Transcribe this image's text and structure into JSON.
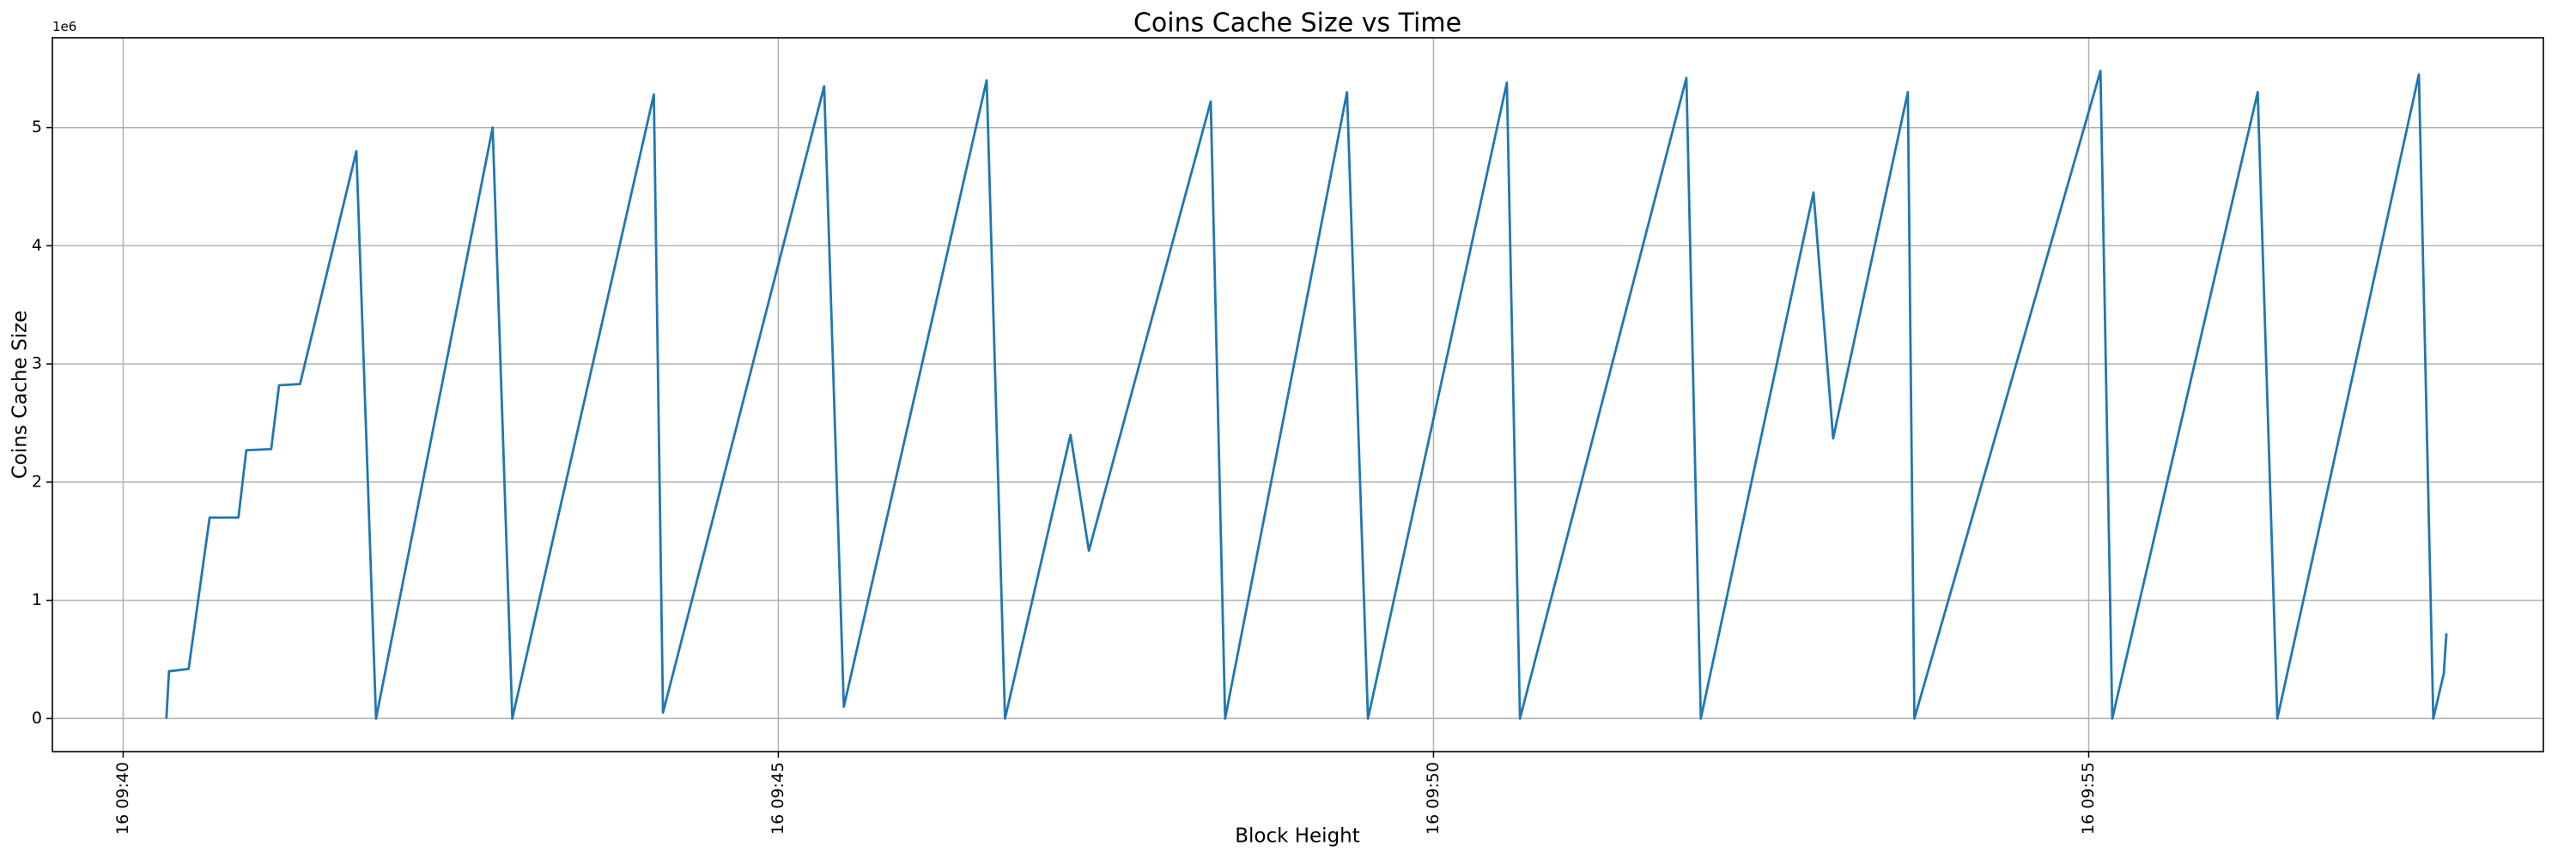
{
  "chart_data": {
    "type": "line",
    "title": "Coins Cache Size vs Time",
    "xlabel": "Block Height",
    "ylabel": "Coins Cache Size",
    "y_offset_label": "1e6",
    "color": "#1f77b4",
    "grid": true,
    "x": [
      40.33,
      40.35,
      40.5,
      40.66,
      40.88,
      40.94,
      41.13,
      41.19,
      41.35,
      41.78,
      41.93,
      42.82,
      42.97,
      44.05,
      44.12,
      45.35,
      45.5,
      46.59,
      46.73,
      47.23,
      47.37,
      48.3,
      48.41,
      49.34,
      49.5,
      50.56,
      50.66,
      51.93,
      52.04,
      52.9,
      53.05,
      53.62,
      53.67,
      55.09,
      55.18,
      56.29,
      56.44,
      57.52,
      57.63,
      57.71,
      57.73
    ],
    "values": [
      0,
      0.4,
      0.42,
      1.7,
      1.7,
      2.27,
      2.28,
      2.82,
      2.83,
      4.8,
      0,
      5.0,
      0,
      5.28,
      0.05,
      5.35,
      0.1,
      5.4,
      0,
      2.4,
      1.42,
      5.22,
      0,
      5.3,
      0,
      5.38,
      0,
      5.42,
      0,
      4.45,
      2.37,
      5.3,
      0,
      5.48,
      0,
      5.3,
      0,
      5.45,
      0,
      0.38,
      0.72
    ],
    "xlim": [
      39.46,
      58.47
    ],
    "ylim": [
      -0.28,
      5.76
    ],
    "xticks": [
      {
        "value": 40,
        "label": "16 09:40"
      },
      {
        "value": 45,
        "label": "16 09:45"
      },
      {
        "value": 50,
        "label": "16 09:50"
      },
      {
        "value": 55,
        "label": "16 09:55"
      }
    ],
    "yticks": [
      0,
      1,
      2,
      3,
      4,
      5
    ]
  }
}
